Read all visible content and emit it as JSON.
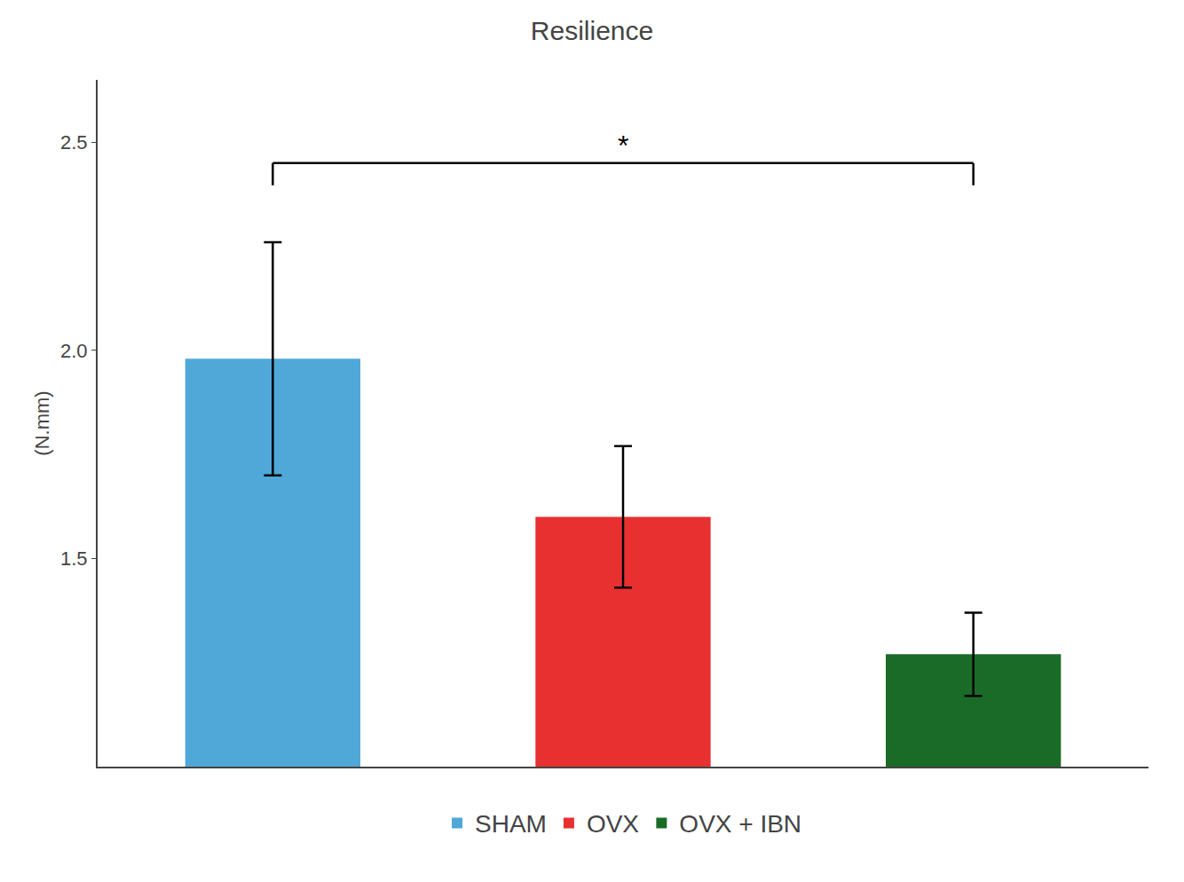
{
  "chart_data": {
    "type": "bar",
    "title": "Resilience",
    "ylabel": "(N.mm)",
    "categories": [
      "SHAM",
      "OVX",
      "OVX + IBN"
    ],
    "values": [
      1.98,
      1.6,
      1.27
    ],
    "errors": [
      0.28,
      0.17,
      0.1
    ],
    "colors": [
      "#4FA8D8",
      "#E83030",
      "#1B6B28"
    ],
    "ylim": [
      1.0,
      2.65
    ],
    "yticks": [
      1.5,
      {
        "value": 2.0,
        "label": "2.0"
      },
      2.5
    ],
    "grid": false,
    "legend": "bottom",
    "tick_labels": "y",
    "bracket": {
      "from": "SHAM",
      "to": "OVX + IBN",
      "y": 2.45,
      "text": "*"
    }
  }
}
